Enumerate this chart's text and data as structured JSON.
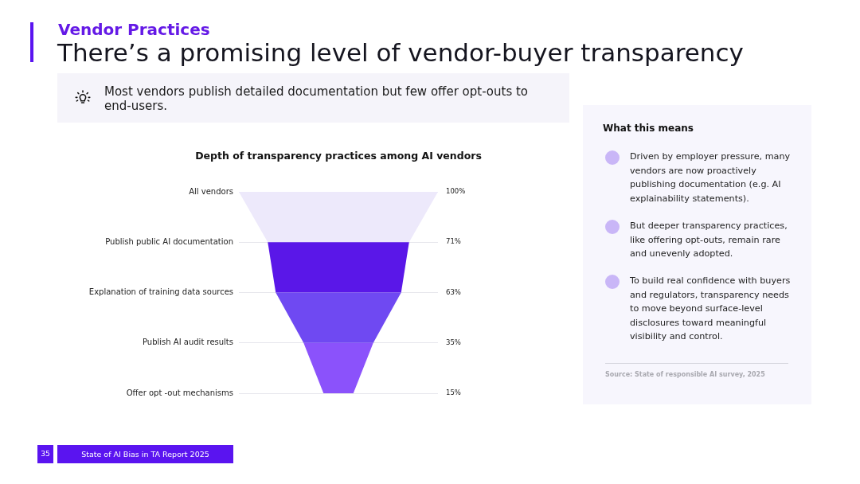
{
  "chart_data": [
    {
      "type": "other",
      "title": "Depth of transparency practices among AI vendors",
      "categories": [
        "All vendors",
        "Publish public AI documentation",
        "Explanation of training data sources",
        "Publish AI audit results",
        "Offer opt -out mechanisms"
      ],
      "values": [
        100,
        71,
        63,
        35,
        15
      ],
      "value_labels": [
        "100%",
        "71%",
        "63%",
        "35%",
        "15%"
      ],
      "colors": [
        "#ede9fb",
        "#5a17e8",
        "#6f49f2",
        "#8b52fb",
        null
      ],
      "annotations": [
        "Vendor Practices",
        "There’s a promising level of vendor-buyer transparency",
        "Most vendors publish detailed documentation but few offer opt-outs to end-users.",
        "35",
        "State of AI Bias in TA Report 2025"
      ]
    },
    {
      "type": "other",
      "title": "What this means",
      "annotations": [
        "Driven by employer pressure, many vendors are now proactively publishing documentation (e.g. AI explainability statements).",
        "But deeper transparency practices, like offering opt-outs, remain rare and unevenly adopted.",
        "To build real confidence with buyers and regulators, transparency needs to move beyond surface-level disclosures toward meaningful visibility and control.",
        "Source: State of responsible AI survey, 2025"
      ]
    }
  ]
}
